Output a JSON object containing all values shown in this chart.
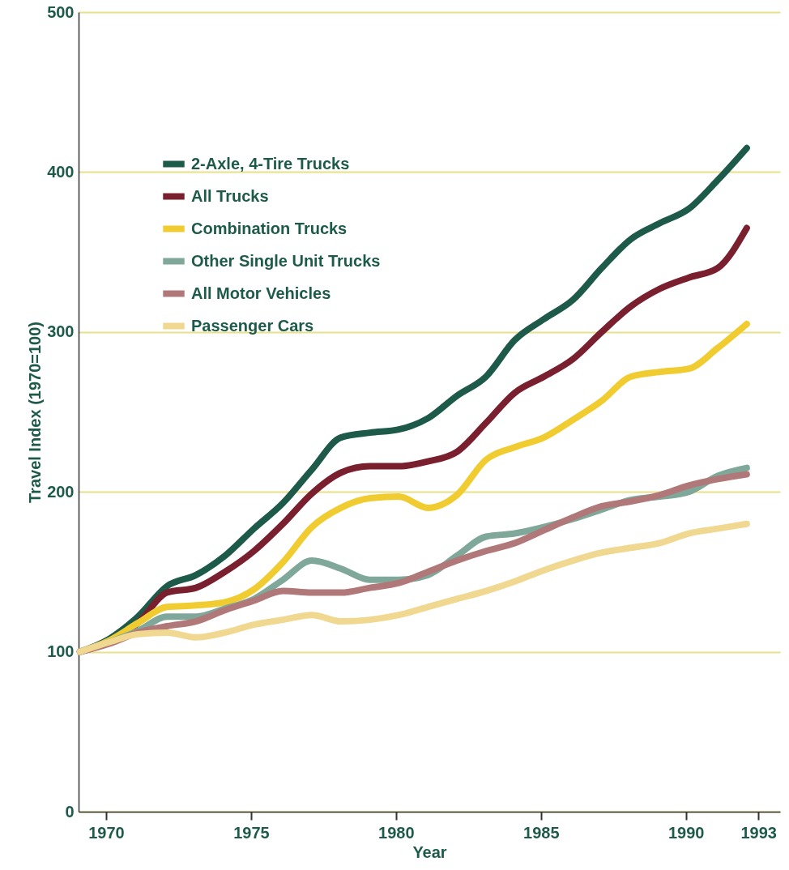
{
  "chart_data": {
    "type": "line",
    "xlabel": "Year",
    "ylabel": "Travel Index (1970=100)",
    "x": [
      1969.1,
      1970.1,
      1971.1,
      1972.1,
      1973.1,
      1974.1,
      1975.1,
      1976.1,
      1977.1,
      1978.1,
      1979.1,
      1980.1,
      1981.1,
      1982.1,
      1983.1,
      1984.1,
      1985.1,
      1986.1,
      1987.1,
      1988.1,
      1989.1,
      1990.1,
      1991.1,
      1992.1
    ],
    "xlim": [
      1969.05,
      1993.25
    ],
    "xticks": [
      1970,
      1975,
      1980,
      1985,
      1990,
      {
        "value": 1992.5,
        "label": "1993"
      }
    ],
    "ylim": [
      0,
      500
    ],
    "yticks": [
      0,
      100,
      200,
      300,
      400,
      500
    ],
    "grid": "y",
    "legend": "top left",
    "series": [
      {
        "name": "2-Axle, 4-Tire Trucks",
        "color": "#1e5a4a",
        "values": [
          100,
          108,
          122,
          141,
          148,
          160,
          177,
          193,
          214,
          234,
          237,
          239,
          246,
          260,
          272,
          295,
          308,
          320,
          340,
          358,
          368,
          377,
          395,
          415
        ]
      },
      {
        "name": "All Trucks",
        "color": "#7a1f2e",
        "values": [
          100,
          106,
          118,
          137,
          140,
          150,
          163,
          180,
          199,
          212,
          216,
          216,
          219,
          225,
          243,
          262,
          272,
          283,
          300,
          316,
          327,
          334,
          340,
          365
        ]
      },
      {
        "name": "Combination Trucks",
        "color": "#f0cc30",
        "values": [
          100,
          107,
          118,
          128,
          129,
          131,
          139,
          156,
          178,
          190,
          196,
          197,
          190,
          198,
          220,
          228,
          234,
          245,
          257,
          272,
          275,
          277,
          290,
          305
        ]
      },
      {
        "name": "Other Single Unit Trucks",
        "color": "#80a89a",
        "values": [
          100,
          106,
          113,
          122,
          122,
          127,
          133,
          145,
          157,
          152,
          145,
          145,
          148,
          160,
          172,
          174,
          178,
          183,
          189,
          195,
          197,
          200,
          210,
          215
        ]
      },
      {
        "name": "All Motor Vehicles",
        "color": "#b07878",
        "values": [
          100,
          105,
          112,
          116,
          119,
          126,
          132,
          138,
          137,
          137,
          140,
          143,
          150,
          157,
          163,
          168,
          176,
          184,
          191,
          194,
          198,
          204,
          208,
          211
        ]
      },
      {
        "name": "Passenger Cars",
        "color": "#f0d890",
        "values": [
          100,
          106,
          111,
          112,
          109,
          112,
          117,
          120,
          123,
          119,
          120,
          123,
          128,
          133,
          138,
          144,
          151,
          157,
          162,
          165,
          168,
          174,
          177,
          180
        ]
      }
    ]
  }
}
